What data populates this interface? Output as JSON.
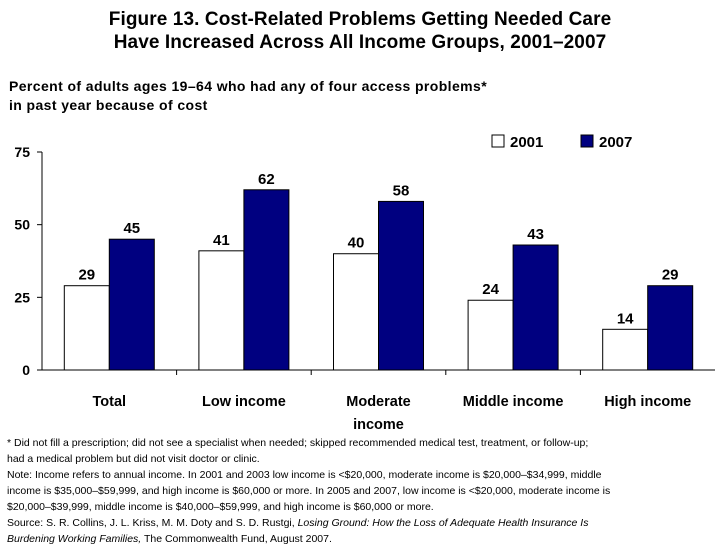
{
  "title_lines": [
    "Figure 13. Cost-Related Problems Getting Needed Care",
    "Have Increased Across All Income Groups, 2001–2007"
  ],
  "subtitle_lines": [
    "Percent of adults ages 19–64 who had any of four access problems*",
    "in past year because of cost"
  ],
  "chart_data": {
    "type": "bar",
    "categories": [
      [
        "Total"
      ],
      [
        "Low income"
      ],
      [
        "Moderate",
        "income"
      ],
      [
        "Middle income"
      ],
      [
        "High income"
      ]
    ],
    "series": [
      {
        "name": "2001",
        "values": [
          29,
          41,
          40,
          24,
          14
        ],
        "color": "#ffffff",
        "stroke": "#000000"
      },
      {
        "name": "2007",
        "values": [
          45,
          62,
          58,
          43,
          29
        ],
        "color": "#000080",
        "stroke": "#000000"
      }
    ],
    "ylim": [
      0,
      75
    ],
    "yticks": [
      0,
      25,
      50,
      75
    ],
    "grid": false,
    "legend": "top-right",
    "data_labels": true
  },
  "footnotes": {
    "asterisk": [
      "* Did not fill a prescription; did not see a specialist when needed; skipped recommended medical test, treatment, or follow-up;",
      "had a medical problem but did not visit doctor or clinic."
    ],
    "note": [
      "Note: Income refers to annual income. In 2001 and 2003 low income is <$20,000, moderate income is $20,000–$34,999, middle",
      "income is $35,000–$59,999, and high income is $60,000 or more. In 2005 and 2007, low income is <$20,000, moderate income is",
      "$20,000–$39,999, middle income is $40,000–$59,999, and high income is $60,000 or more."
    ],
    "source_prefix": "Source: S. R. Collins, J. L. Kriss, M. M. Doty and S. D. Rustgi, ",
    "source_title_1": "Losing Ground: How the Loss of Adequate Health Insurance Is",
    "source_title_2": "Burdening Working Families,",
    "source_suffix": " The Commonwealth Fund, August 2007."
  }
}
